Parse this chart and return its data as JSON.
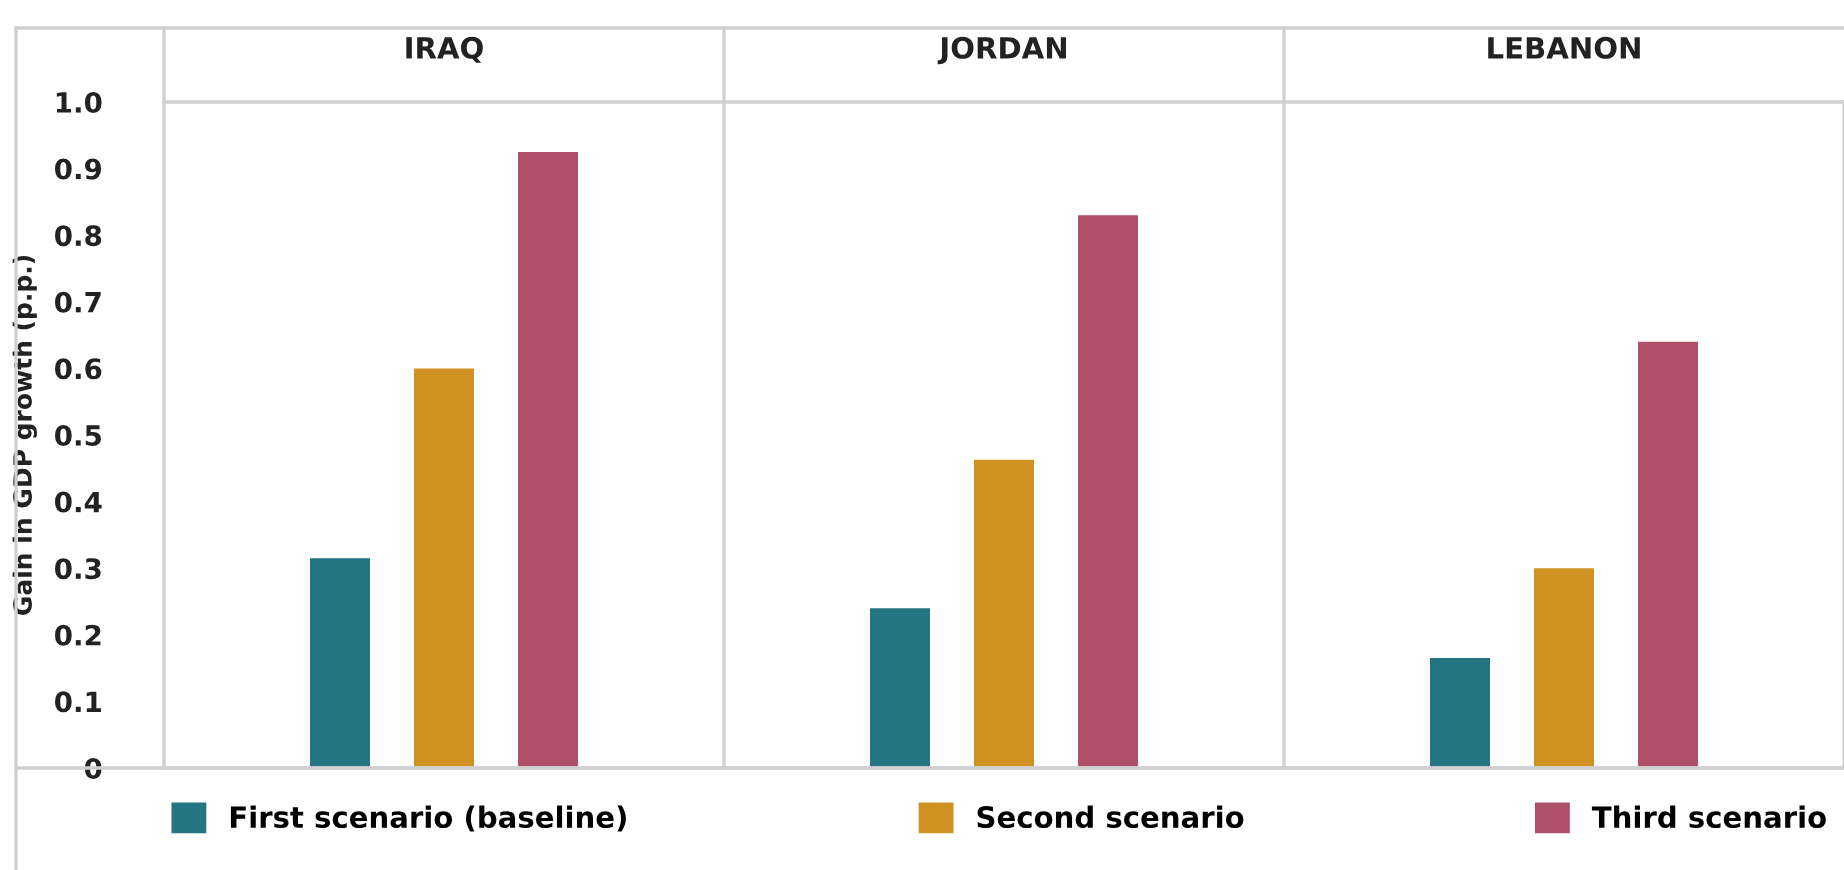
{
  "chart_data": {
    "type": "bar",
    "ylabel": "Gain in GDP growth (p.p.)",
    "categories": [
      "IRAQ",
      "JORDAN",
      "LEBANON"
    ],
    "ylim": [
      0,
      1.0
    ],
    "yticks": [
      {
        "value": 0,
        "label": "0"
      },
      0.1,
      0.2,
      0.3,
      0.4,
      0.5,
      0.6,
      0.7,
      0.8,
      0.9,
      {
        "value": 1.0,
        "label": "1.0"
      }
    ],
    "grid": false,
    "legend": "bottom",
    "series": [
      {
        "name": "First scenario (baseline)",
        "color": "#237582",
        "values": [
          0.315,
          0.24,
          0.165
        ]
      },
      {
        "name": "Second scenario",
        "color": "#d09222",
        "values": [
          0.6,
          0.463,
          0.3
        ]
      },
      {
        "name": "Third scenario",
        "color": "#b04f69",
        "values": [
          0.925,
          0.83,
          0.64
        ]
      }
    ]
  }
}
